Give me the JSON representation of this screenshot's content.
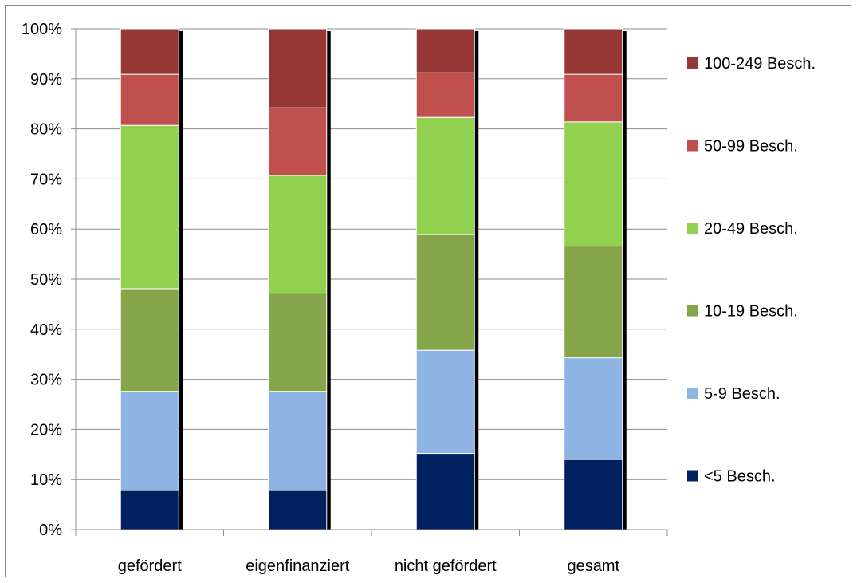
{
  "chart_data": {
    "type": "bar",
    "stacked": true,
    "normalized": "percent",
    "title": "",
    "xlabel": "",
    "ylabel": "",
    "ylim": [
      0,
      100
    ],
    "y_ticks": [
      "0%",
      "10%",
      "20%",
      "30%",
      "40%",
      "50%",
      "60%",
      "70%",
      "80%",
      "90%",
      "100%"
    ],
    "grid": "horizontal",
    "legend_position": "right",
    "categories": [
      "gefördert",
      "eigenfinanziert",
      "nicht gefördert",
      "gesamt"
    ],
    "series": [
      {
        "name": "<5 Besch.",
        "color": "#002060",
        "values": [
          7.8,
          7.8,
          15.2,
          14.0
        ]
      },
      {
        "name": "5-9 Besch.",
        "color": "#8eb4e3",
        "values": [
          19.8,
          19.8,
          20.6,
          20.3
        ]
      },
      {
        "name": "10-19 Besch.",
        "color": "#86a44a",
        "values": [
          20.5,
          19.6,
          23.1,
          22.3
        ]
      },
      {
        "name": "20-49 Besch.",
        "color": "#92d050",
        "values": [
          32.6,
          23.5,
          23.4,
          24.8
        ]
      },
      {
        "name": "50-99 Besch.",
        "color": "#c0504d",
        "values": [
          10.2,
          13.5,
          8.9,
          9.5
        ]
      },
      {
        "name": "100-249 Besch.",
        "color": "#953735",
        "values": [
          9.1,
          15.8,
          8.8,
          9.1
        ]
      }
    ]
  }
}
